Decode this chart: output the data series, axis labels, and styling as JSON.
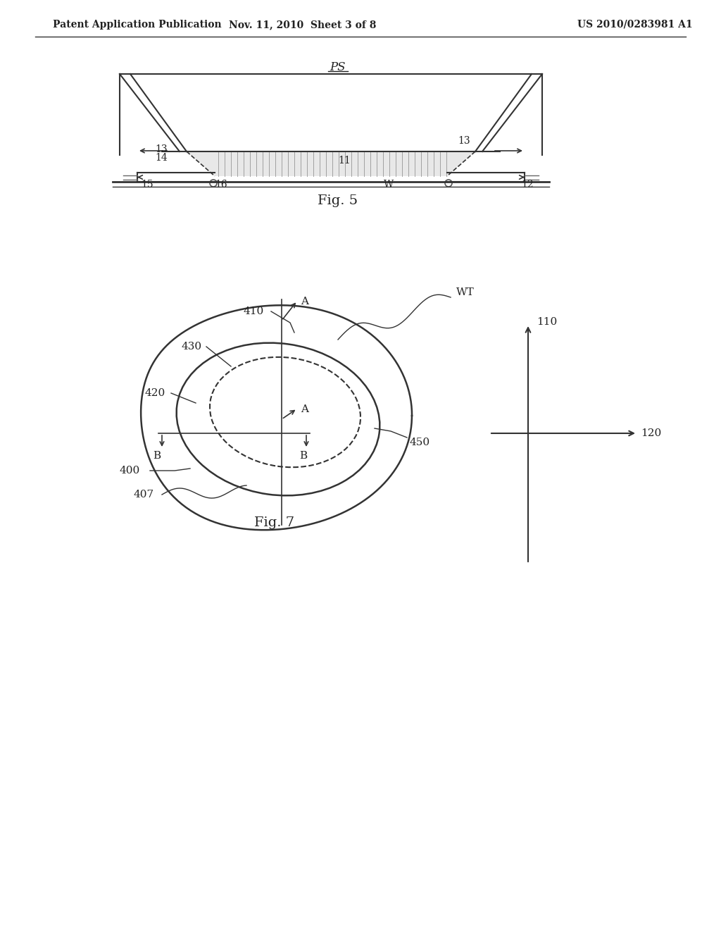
{
  "bg_color": "#ffffff",
  "header_left": "Patent Application Publication",
  "header_mid": "Nov. 11, 2010  Sheet 3 of 8",
  "header_right": "US 2010/0283981 A1",
  "fig5_label": "Fig. 5",
  "fig7_label": "Fig. 7"
}
